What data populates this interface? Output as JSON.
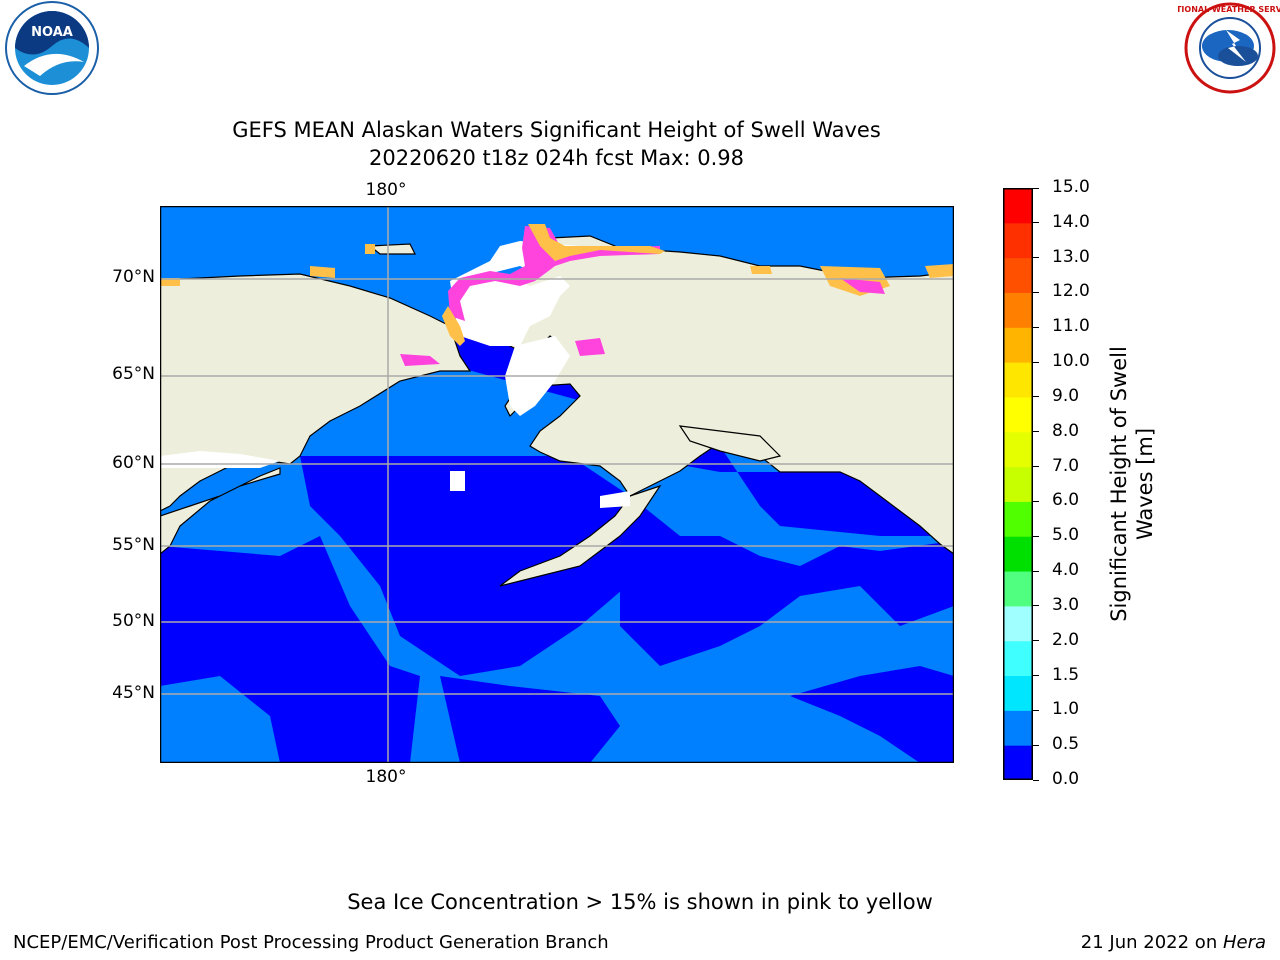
{
  "title": {
    "line1": "GEFS MEAN Alaskan Waters Significant Height of Swell Waves",
    "line2": "20220620 t18z 024h fcst   Max: 0.98"
  },
  "map": {
    "lon_label_top": "180°",
    "lon_label_bottom": "180°",
    "lat_labels": [
      "70°N",
      "65°N",
      "60°N",
      "55°N",
      "50°N",
      "45°N"
    ],
    "colors": {
      "land": "#eeeedc",
      "sea_low": "#0000ff",
      "sea_mid": "#0080ff",
      "ice_white": "#ffffff",
      "ice_pink": "#ff44dd",
      "ice_yellow": "#ffc04a",
      "grid": "#aaaaaa",
      "coast": "#000000"
    }
  },
  "colorbar": {
    "label": "Significant Height of Swell Waves [m]",
    "label_line1": "Significant Height of Swell",
    "label_line2": "Waves [m]",
    "ticks": [
      "0.0",
      "0.5",
      "1.0",
      "1.5",
      "2.0",
      "3.0",
      "4.0",
      "5.0",
      "6.0",
      "7.0",
      "8.0",
      "9.0",
      "10.0",
      "11.0",
      "12.0",
      "13.0",
      "14.0",
      "15.0"
    ],
    "colors": [
      "#0000ff",
      "#0080ff",
      "#00e6ff",
      "#40ffff",
      "#a0ffff",
      "#50ff80",
      "#00e000",
      "#50ff00",
      "#c8ff00",
      "#e6ff00",
      "#ffff00",
      "#ffe600",
      "#ffb400",
      "#ff8000",
      "#ff5000",
      "#ff3000",
      "#ff0000"
    ]
  },
  "logos": {
    "noaa": "NOAA",
    "nws": "NATIONAL WEATHER SERVICE"
  },
  "caption": "Sea Ice Concentration > 15% is shown in pink to yellow",
  "footer": {
    "left": "NCEP/EMC/Verification Post Processing Product Generation Branch",
    "right_date": "21 Jun 2022 on ",
    "right_host": "Hera"
  }
}
